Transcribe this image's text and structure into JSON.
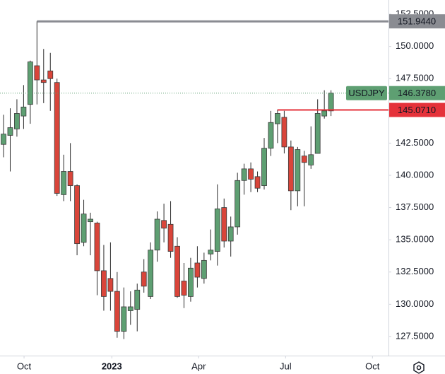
{
  "chart_data": {
    "type": "candlestick",
    "symbol": "USDJPY",
    "categories": [
      null,
      null,
      null,
      null,
      null,
      null,
      null,
      null,
      null,
      null,
      null,
      null,
      null,
      null,
      null,
      null,
      null,
      null,
      null,
      null,
      null,
      null,
      null,
      null,
      null,
      null,
      null,
      null,
      null,
      null,
      null,
      null,
      null,
      null,
      null,
      null,
      null,
      null,
      null,
      null,
      null,
      null,
      null,
      null,
      null,
      null,
      null,
      null,
      null,
      null
    ],
    "open": [
      142.4,
      143.1,
      143.6,
      144.6,
      145.5,
      148.5,
      147.4,
      148.1,
      147.2,
      138.5,
      140.3,
      139.2,
      134.8,
      136.4,
      136.3,
      132.6,
      132.0,
      131.0,
      127.9,
      129.5,
      129.6,
      132.5,
      130.6,
      134.2,
      136.5,
      136.2,
      134.5,
      131.8,
      130.6,
      133.2,
      132.0,
      133.9,
      134.1,
      137.5,
      134.9,
      136.0,
      139.6,
      140.5,
      139.9,
      139.2,
      142.1,
      144.0,
      144.5,
      142.2,
      138.8,
      141.5,
      140.8,
      141.7,
      144.6,
      145.0
    ],
    "high": [
      144.7,
      145.2,
      145.9,
      147.0,
      148.9,
      151.944,
      149.8,
      149.5,
      147.5,
      141.6,
      142.5,
      139.3,
      138.1,
      137.1,
      136.4,
      134.6,
      134.8,
      132.5,
      131.3,
      131.0,
      131.6,
      133.5,
      134.8,
      137.2,
      137.8,
      138.0,
      135.2,
      133.2,
      133.6,
      134.5,
      134.0,
      135.8,
      139.3,
      138.2,
      136.8,
      140.2,
      140.9,
      141.0,
      140.3,
      142.9,
      145.0,
      145.1,
      145.0,
      142.7,
      142.2,
      141.9,
      143.8,
      145.9,
      146.6,
      146.6
    ],
    "low": [
      141.4,
      140.3,
      143.0,
      143.6,
      144.0,
      145.5,
      145.6,
      145.0,
      138.4,
      138.0,
      138.0,
      133.8,
      134.5,
      133.8,
      130.7,
      129.5,
      129.5,
      127.4,
      127.3,
      128.4,
      127.9,
      130.9,
      130.4,
      133.3,
      134.8,
      133.6,
      130.5,
      129.7,
      130.2,
      131.3,
      131.6,
      133.4,
      133.0,
      134.4,
      133.7,
      135.4,
      138.5,
      138.7,
      138.7,
      138.9,
      141.5,
      142.5,
      141.7,
      137.3,
      137.6,
      137.6,
      140.5,
      141.7,
      144.4,
      144.6
    ],
    "close": [
      143.2,
      143.7,
      144.8,
      145.3,
      148.8,
      147.4,
      147.2,
      147.5,
      138.6,
      140.3,
      139.2,
      134.7,
      137.0,
      136.6,
      132.6,
      130.6,
      131.0,
      127.9,
      129.8,
      129.8,
      131.1,
      131.4,
      134.2,
      136.6,
      135.9,
      134.1,
      130.6,
      130.7,
      132.8,
      132.1,
      133.4,
      134.2,
      137.4,
      134.9,
      136.0,
      139.6,
      140.5,
      139.7,
      139.0,
      142.1,
      144.1,
      144.8,
      142.2,
      138.8,
      142.0,
      141.0,
      141.6,
      144.8,
      145.0,
      146.378
    ],
    "up_color": "#5e9f72",
    "down_color": "#d9453a",
    "wick_color": "#2b2b2b",
    "xlim": [
      -0.53,
      57.6
    ],
    "xticks": [
      {
        "value": 3.07,
        "label": "Oct"
      },
      {
        "value": 16.2,
        "label": "2023",
        "bold": true
      },
      {
        "value": 29.2,
        "label": "Apr"
      },
      {
        "value": 42.2,
        "label": "Jul"
      },
      {
        "value": 55.2,
        "label": "Oct"
      }
    ],
    "ylim": [
      126.07,
      153.6
    ],
    "yticks": [
      {
        "value": 127.5,
        "label": "127.5000"
      },
      {
        "value": 130,
        "label": "130.0000"
      },
      {
        "value": 132.5,
        "label": "132.5000"
      },
      {
        "value": 135,
        "label": "135.0000"
      },
      {
        "value": 137.5,
        "label": "137.5000"
      },
      {
        "value": 140,
        "label": "140.0000"
      },
      {
        "value": 142.5,
        "label": "142.5000"
      },
      {
        "value": 145,
        "label": "145.0000"
      },
      {
        "value": 147.5,
        "label": "147.5000"
      },
      {
        "value": 150,
        "label": "150.0000"
      },
      {
        "value": 152.5,
        "label": "152.5000"
      }
    ],
    "hlines": [
      {
        "value": 151.944,
        "label": "151.9440",
        "color": "#8a8c92",
        "from": 5
      },
      {
        "value": 145.071,
        "label": "145.0710",
        "color": "#e5323a",
        "from": 41
      }
    ],
    "last_price": {
      "value": 146.378,
      "label": "146.3780",
      "color": "#5e9f72"
    }
  }
}
